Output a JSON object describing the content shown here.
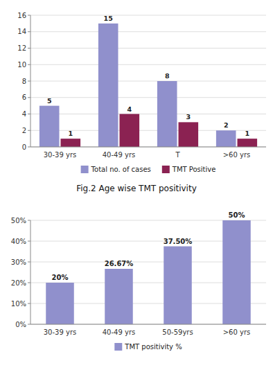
{
  "chart_data": [
    {
      "type": "bar",
      "title": "Fig.2 Age wise TMT positivity",
      "categories": [
        "30-39 yrs",
        "40-49 yrs",
        "T",
        ">60 yrs"
      ],
      "series": [
        {
          "name": "Total no. of cases",
          "color": "#9090cc",
          "values": [
            5,
            15,
            8,
            2
          ]
        },
        {
          "name": "TMT Positive",
          "color": "#8b2252",
          "values": [
            1,
            4,
            3,
            1
          ]
        }
      ],
      "ylim": [
        0,
        16
      ],
      "yticks": [
        0,
        2,
        4,
        6,
        8,
        10,
        12,
        14,
        16
      ],
      "grid": true,
      "legend": "bottom",
      "data_labels": true
    },
    {
      "type": "bar",
      "categories": [
        "30-39 yrs",
        "40-49 yrs",
        "50-59yrs",
        ">60 yrs"
      ],
      "series": [
        {
          "name": "TMT positivity %",
          "color": "#9090cc",
          "values": [
            20,
            26.67,
            37.5,
            50
          ],
          "value_labels": [
            "20%",
            "26.67%",
            "37.50%",
            "50%"
          ]
        }
      ],
      "ylim": [
        0,
        50
      ],
      "yticks": [
        {
          "value": 0,
          "label": "0%"
        },
        {
          "value": 10,
          "label": "10%"
        },
        {
          "value": 20,
          "label": "20%"
        },
        {
          "value": 30,
          "label": "30%"
        },
        {
          "value": 40,
          "label": "40%"
        },
        {
          "value": 50,
          "label": "50%"
        }
      ],
      "grid": true,
      "legend": "bottom",
      "data_labels": true
    }
  ]
}
